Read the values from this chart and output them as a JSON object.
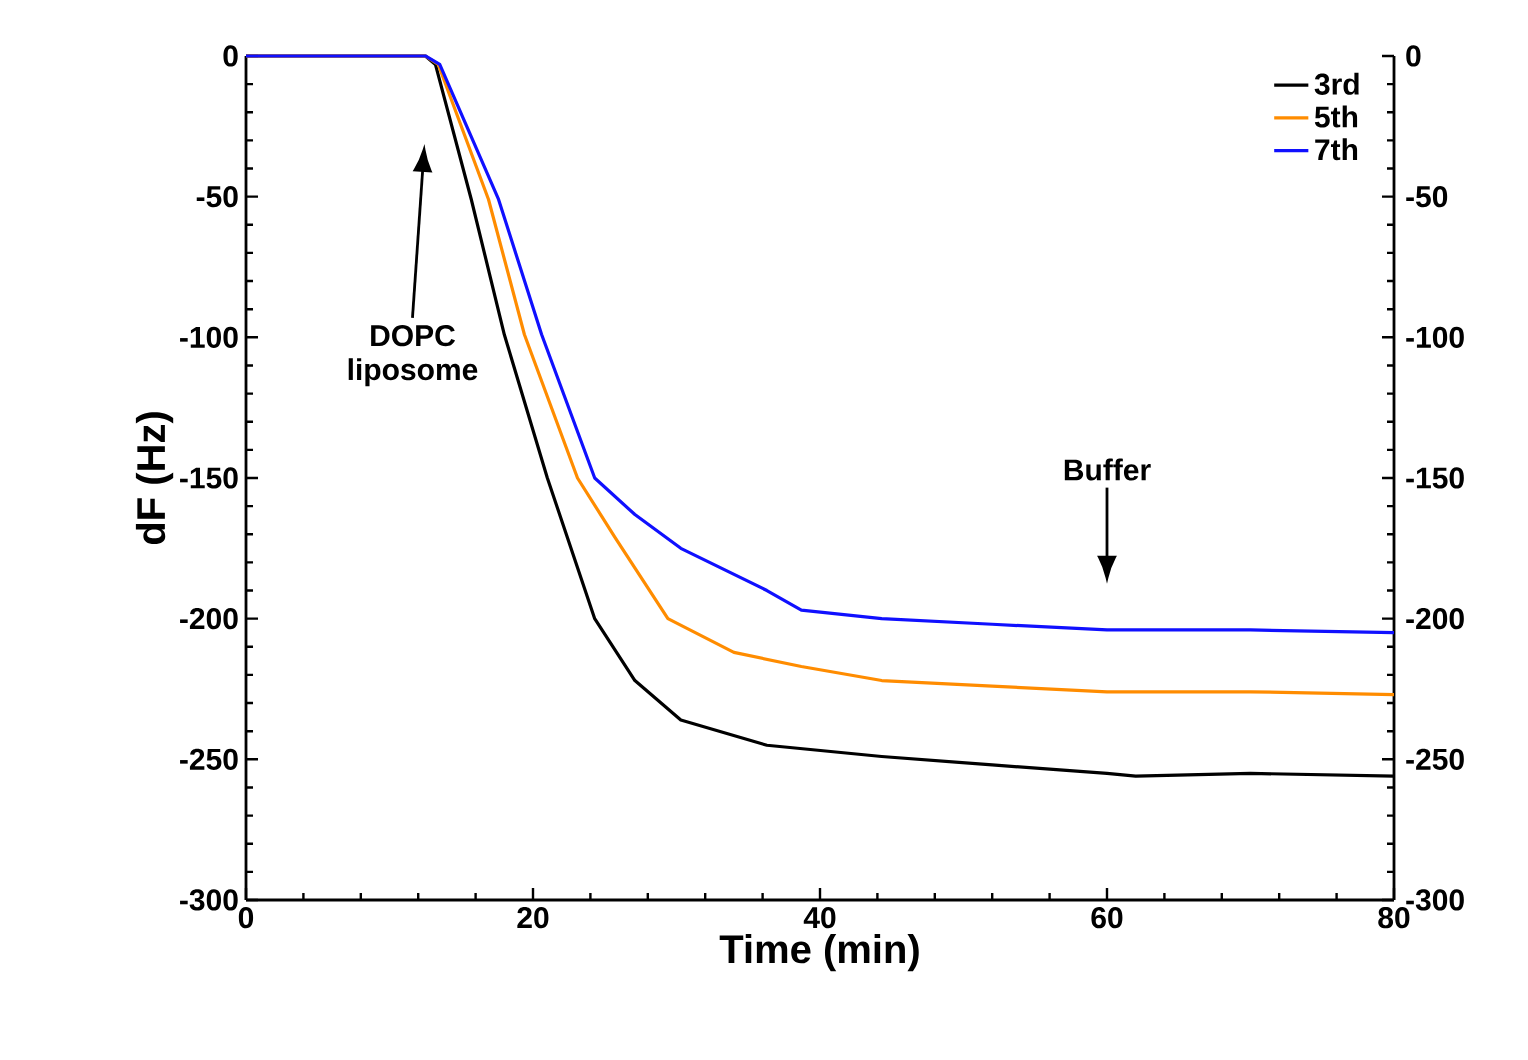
{
  "chart_data": {
    "type": "line",
    "xlabel": "Time (min)",
    "ylabel": "dF (Hz)",
    "xlim": [
      0,
      80
    ],
    "xticks": [
      0,
      20,
      40,
      60,
      80
    ],
    "ylim": [
      -300,
      0
    ],
    "yticks": [
      -300,
      -250,
      -200,
      -150,
      -100,
      -50,
      0
    ],
    "y2lim": [
      -300,
      0
    ],
    "y2ticks": [
      -300,
      -250,
      -200,
      -150,
      -100,
      -50,
      0
    ],
    "legend": "top right",
    "marker": "none",
    "line_style": "solid",
    "annotations": [
      "DOPC liposome",
      "Buffer"
    ],
    "series": [
      {
        "name": "3rd",
        "color": "#000000",
        "x": [
          0,
          12.5,
          13.2,
          15.7,
          18.0,
          21.0,
          24.3,
          27.1,
          30.3,
          36.3,
          44.3,
          52,
          60,
          62,
          70,
          80
        ],
        "values": [
          0,
          0,
          -3,
          -51,
          -99,
          -150,
          -200,
          -222,
          -236,
          -245,
          -249,
          -252,
          -255,
          -256,
          -255,
          -256
        ]
      },
      {
        "name": "5th",
        "color": "#ff8c00",
        "x": [
          0,
          12.5,
          13.4,
          16.9,
          19.4,
          23.1,
          25.7,
          29.4,
          34.0,
          38.7,
          44.3,
          52,
          60,
          70,
          80
        ],
        "values": [
          0,
          0,
          -3,
          -51,
          -99,
          -150,
          -171,
          -200,
          -212,
          -217,
          -222,
          -224,
          -226,
          -226,
          -227
        ]
      },
      {
        "name": "7th",
        "color": "#1010ff",
        "x": [
          0,
          12.5,
          13.5,
          17.6,
          20.6,
          24.3,
          27.1,
          30.3,
          36.3,
          38.7,
          44.3,
          52,
          60,
          70,
          80
        ],
        "values": [
          0,
          0,
          -3,
          -51,
          -99,
          -150,
          -163,
          -175,
          -190,
          -197,
          -200,
          -202,
          -204,
          -204,
          -205
        ]
      }
    ]
  }
}
